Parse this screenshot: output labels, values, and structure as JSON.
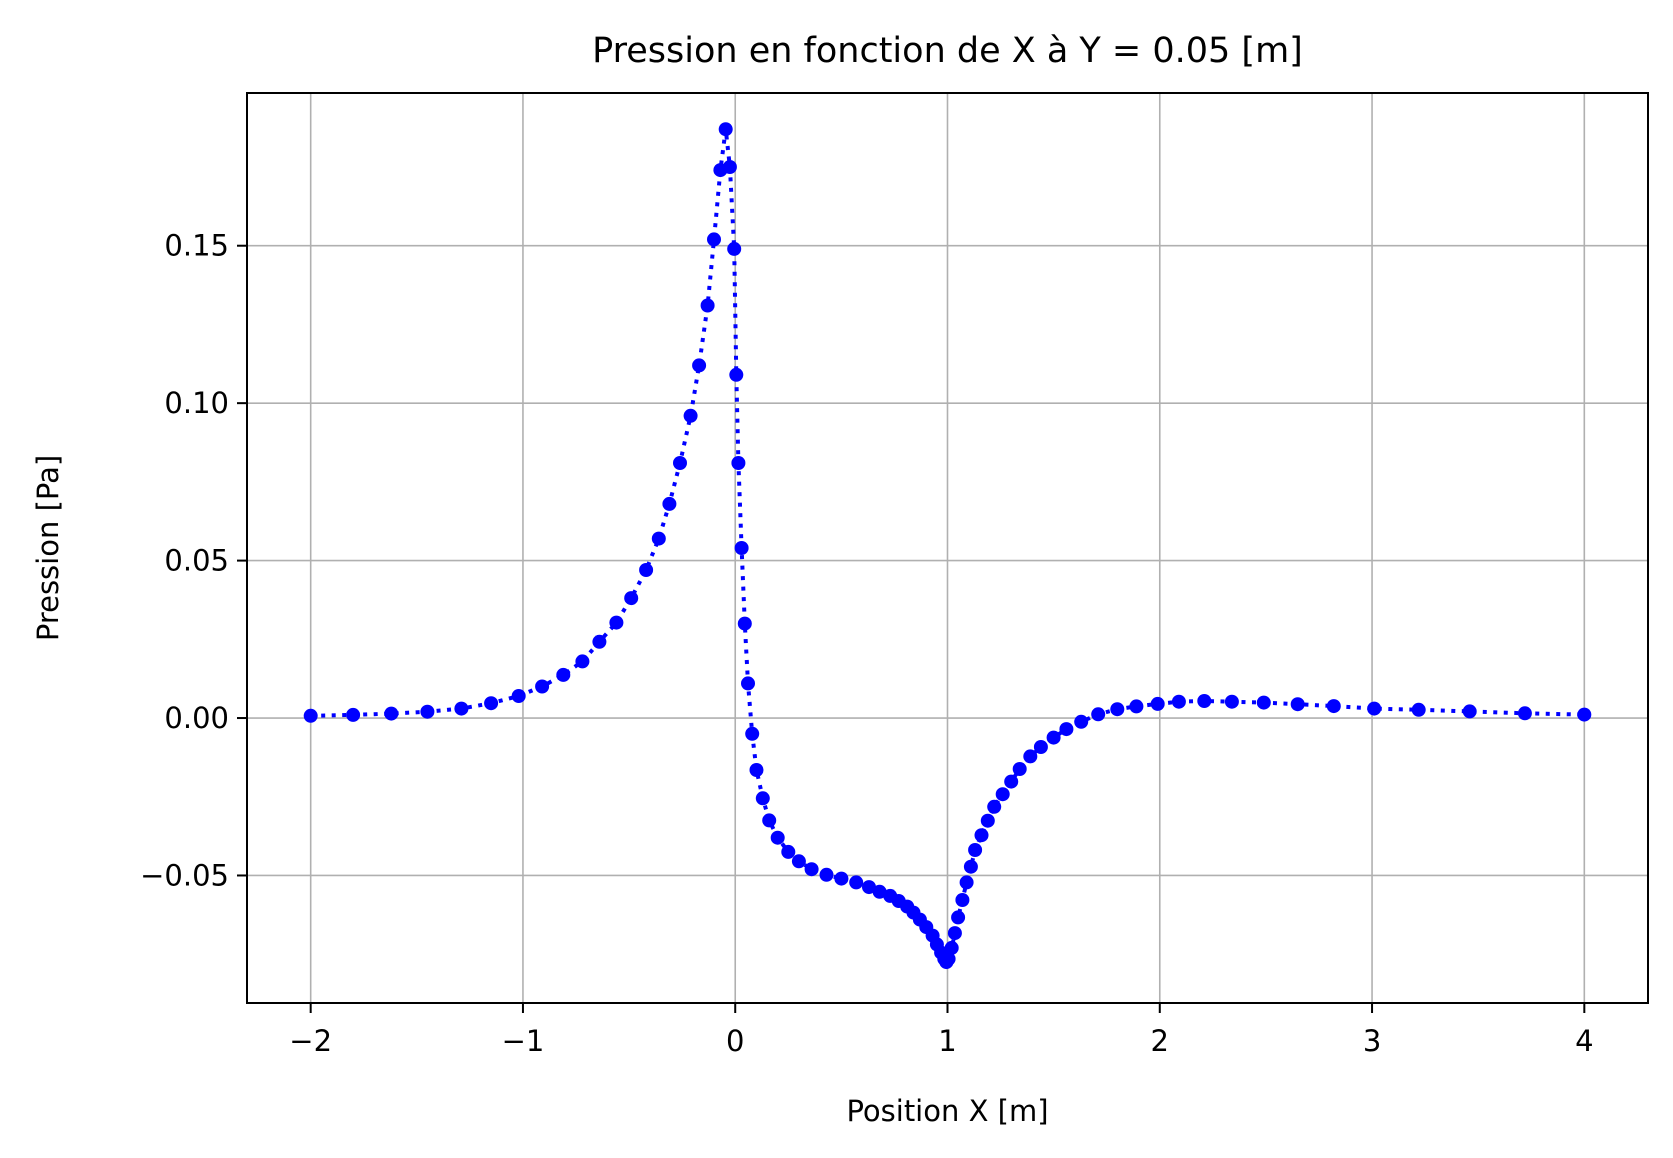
{
  "chart_data": {
    "type": "line",
    "title": "Pression en fonction de X à Y = 0.05 [m]",
    "xlabel": "Position X [m]",
    "ylabel": "Pression [Pa]",
    "xlim": [
      -2.3,
      4.3
    ],
    "ylim": [
      -0.0905,
      0.1985
    ],
    "x_ticks": [
      -2,
      -1,
      0,
      1,
      2,
      3,
      4
    ],
    "x_tick_labels": [
      "−2",
      "−1",
      "0",
      "1",
      "2",
      "3",
      "4"
    ],
    "y_ticks": [
      -0.05,
      0.0,
      0.05,
      0.1,
      0.15
    ],
    "y_tick_labels": [
      "−0.05",
      "0.00",
      "0.05",
      "0.10",
      "0.15"
    ],
    "grid": true,
    "legend": "none",
    "series": [
      {
        "color": "#0000ff",
        "line_style": "dotted",
        "marker": "circle",
        "x": [
          -2.0,
          -1.8,
          -1.62,
          -1.45,
          -1.29,
          -1.15,
          -1.02,
          -0.91,
          -0.81,
          -0.72,
          -0.64,
          -0.56,
          -0.49,
          -0.42,
          -0.36,
          -0.31,
          -0.26,
          -0.21,
          -0.17,
          -0.13,
          -0.1,
          -0.07,
          -0.045,
          -0.025,
          -0.005,
          0.005,
          0.015,
          0.03,
          0.045,
          0.06,
          0.08,
          0.1,
          0.13,
          0.16,
          0.2,
          0.25,
          0.3,
          0.36,
          0.43,
          0.5,
          0.57,
          0.63,
          0.68,
          0.73,
          0.77,
          0.81,
          0.84,
          0.87,
          0.9,
          0.93,
          0.95,
          0.97,
          0.985,
          0.995,
          1.005,
          1.02,
          1.035,
          1.05,
          1.07,
          1.09,
          1.11,
          1.13,
          1.16,
          1.19,
          1.22,
          1.26,
          1.3,
          1.34,
          1.39,
          1.44,
          1.5,
          1.56,
          1.63,
          1.71,
          1.8,
          1.89,
          1.99,
          2.09,
          2.21,
          2.34,
          2.49,
          2.65,
          2.82,
          3.01,
          3.22,
          3.46,
          3.72,
          4.0
        ],
        "y": [
          0.0007,
          0.001,
          0.0014,
          0.002,
          0.003,
          0.0047,
          0.007,
          0.01,
          0.0137,
          0.018,
          0.0242,
          0.0303,
          0.0381,
          0.047,
          0.057,
          0.068,
          0.081,
          0.096,
          0.112,
          0.131,
          0.152,
          0.174,
          0.187,
          0.175,
          0.149,
          0.109,
          0.081,
          0.054,
          0.03,
          0.011,
          -0.005,
          -0.0165,
          -0.0255,
          -0.0325,
          -0.038,
          -0.0425,
          -0.0455,
          -0.048,
          -0.0498,
          -0.051,
          -0.0522,
          -0.0537,
          -0.0552,
          -0.0565,
          -0.0581,
          -0.0599,
          -0.0618,
          -0.064,
          -0.0664,
          -0.0691,
          -0.0719,
          -0.0745,
          -0.0765,
          -0.0775,
          -0.0765,
          -0.073,
          -0.0683,
          -0.0633,
          -0.0578,
          -0.0522,
          -0.0472,
          -0.0419,
          -0.0372,
          -0.0326,
          -0.0282,
          -0.0242,
          -0.0202,
          -0.0162,
          -0.0122,
          -0.0092,
          -0.0062,
          -0.0035,
          -0.0012,
          0.0012,
          0.0028,
          0.0037,
          0.0045,
          0.0052,
          0.0054,
          0.0052,
          0.0049,
          0.0044,
          0.0038,
          0.003,
          0.0026,
          0.0021,
          0.0015,
          0.0011
        ]
      }
    ]
  }
}
